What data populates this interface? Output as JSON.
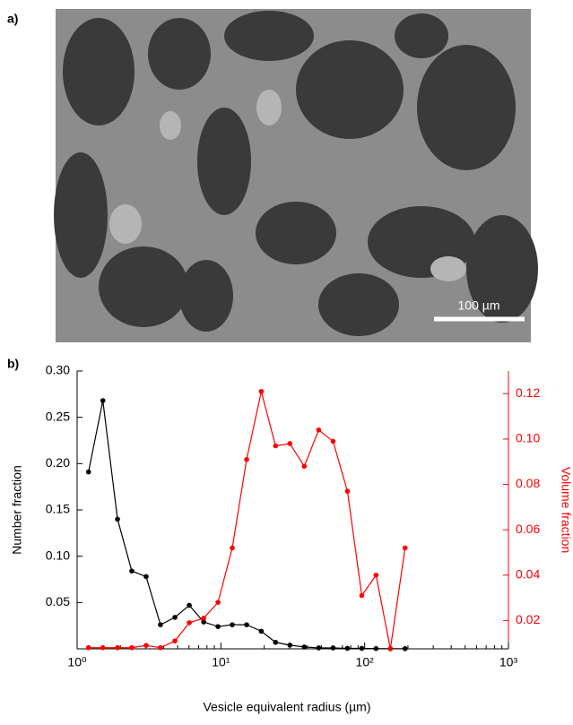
{
  "panel_labels": [
    "a)",
    "b)"
  ],
  "image": {
    "scale_bar": "100 µm"
  },
  "chart_data": {
    "type": "line",
    "xlabel": "Vesicle equivalent radius (µm)",
    "ylabel": "Number fraction",
    "y2label": "Volume fraction",
    "xscale": "log",
    "x": [
      1.2,
      1.51,
      1.91,
      2.4,
      3.02,
      3.8,
      4.79,
      6.03,
      7.59,
      9.55,
      12.0,
      15.1,
      19.1,
      24.0,
      30.2,
      38.0,
      47.9,
      60.3,
      75.9,
      95.5,
      120,
      151,
      191
    ],
    "series": [
      {
        "color": "#000000",
        "axis": "y",
        "values": [
          0.191,
          0.268,
          0.14,
          0.084,
          0.078,
          0.026,
          0.034,
          0.047,
          0.029,
          0.024,
          0.026,
          0.026,
          0.019,
          0.007,
          0.004,
          0.002,
          0.001,
          0.001,
          0.0005,
          0.0005,
          0.0003,
          0.0002,
          0.0002
        ]
      },
      {
        "color": "#ff0000",
        "axis": "y2",
        "values": [
          0.008,
          0.008,
          0.008,
          0.008,
          0.009,
          0.008,
          0.011,
          0.019,
          0.021,
          0.028,
          0.052,
          0.091,
          0.121,
          0.097,
          0.098,
          0.088,
          0.104,
          0.099,
          0.077,
          0.031,
          0.04,
          0.0075,
          0.052
        ]
      }
    ],
    "xlim": [
      1,
      1000
    ],
    "xticks": [
      {
        "value": 1,
        "label": "10⁰"
      },
      {
        "value": 10,
        "label": "10¹"
      },
      {
        "value": 100,
        "label": "10²"
      },
      {
        "value": 1000,
        "label": "10³"
      }
    ],
    "ylim": [
      0,
      0.3
    ],
    "yticks": [
      0.05,
      {
        "value": 0.1,
        "label": "0.10"
      },
      0.15,
      {
        "value": 0.2,
        "label": "0.20"
      },
      0.25,
      {
        "value": 0.3,
        "label": "0.30"
      }
    ],
    "y2lim": [
      0.0075,
      0.13
    ],
    "y2ticks": [
      0.02,
      0.04,
      0.06,
      0.08,
      {
        "value": 0.1,
        "label": "0.10"
      },
      0.12
    ],
    "grid": false
  }
}
